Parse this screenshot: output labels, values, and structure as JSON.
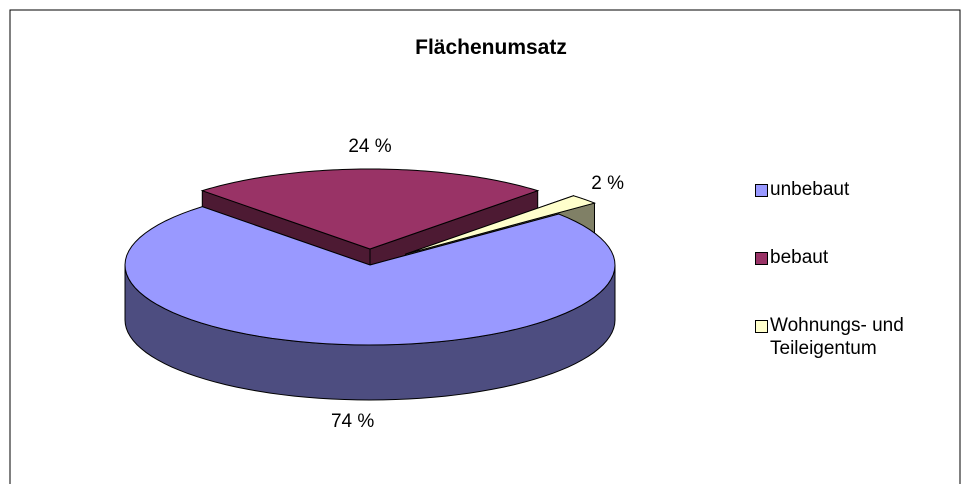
{
  "chart_data": {
    "type": "pie",
    "title": "Flächenumsatz",
    "categories": [
      "unbebaut",
      "bebaut",
      "Wohnungs- und Teileigentum"
    ],
    "values": [
      74,
      24,
      2
    ],
    "value_labels": [
      "74 %",
      "24 %",
      "2 %"
    ],
    "colors": [
      "#9999ff",
      "#993366",
      "#ffffcc"
    ]
  }
}
